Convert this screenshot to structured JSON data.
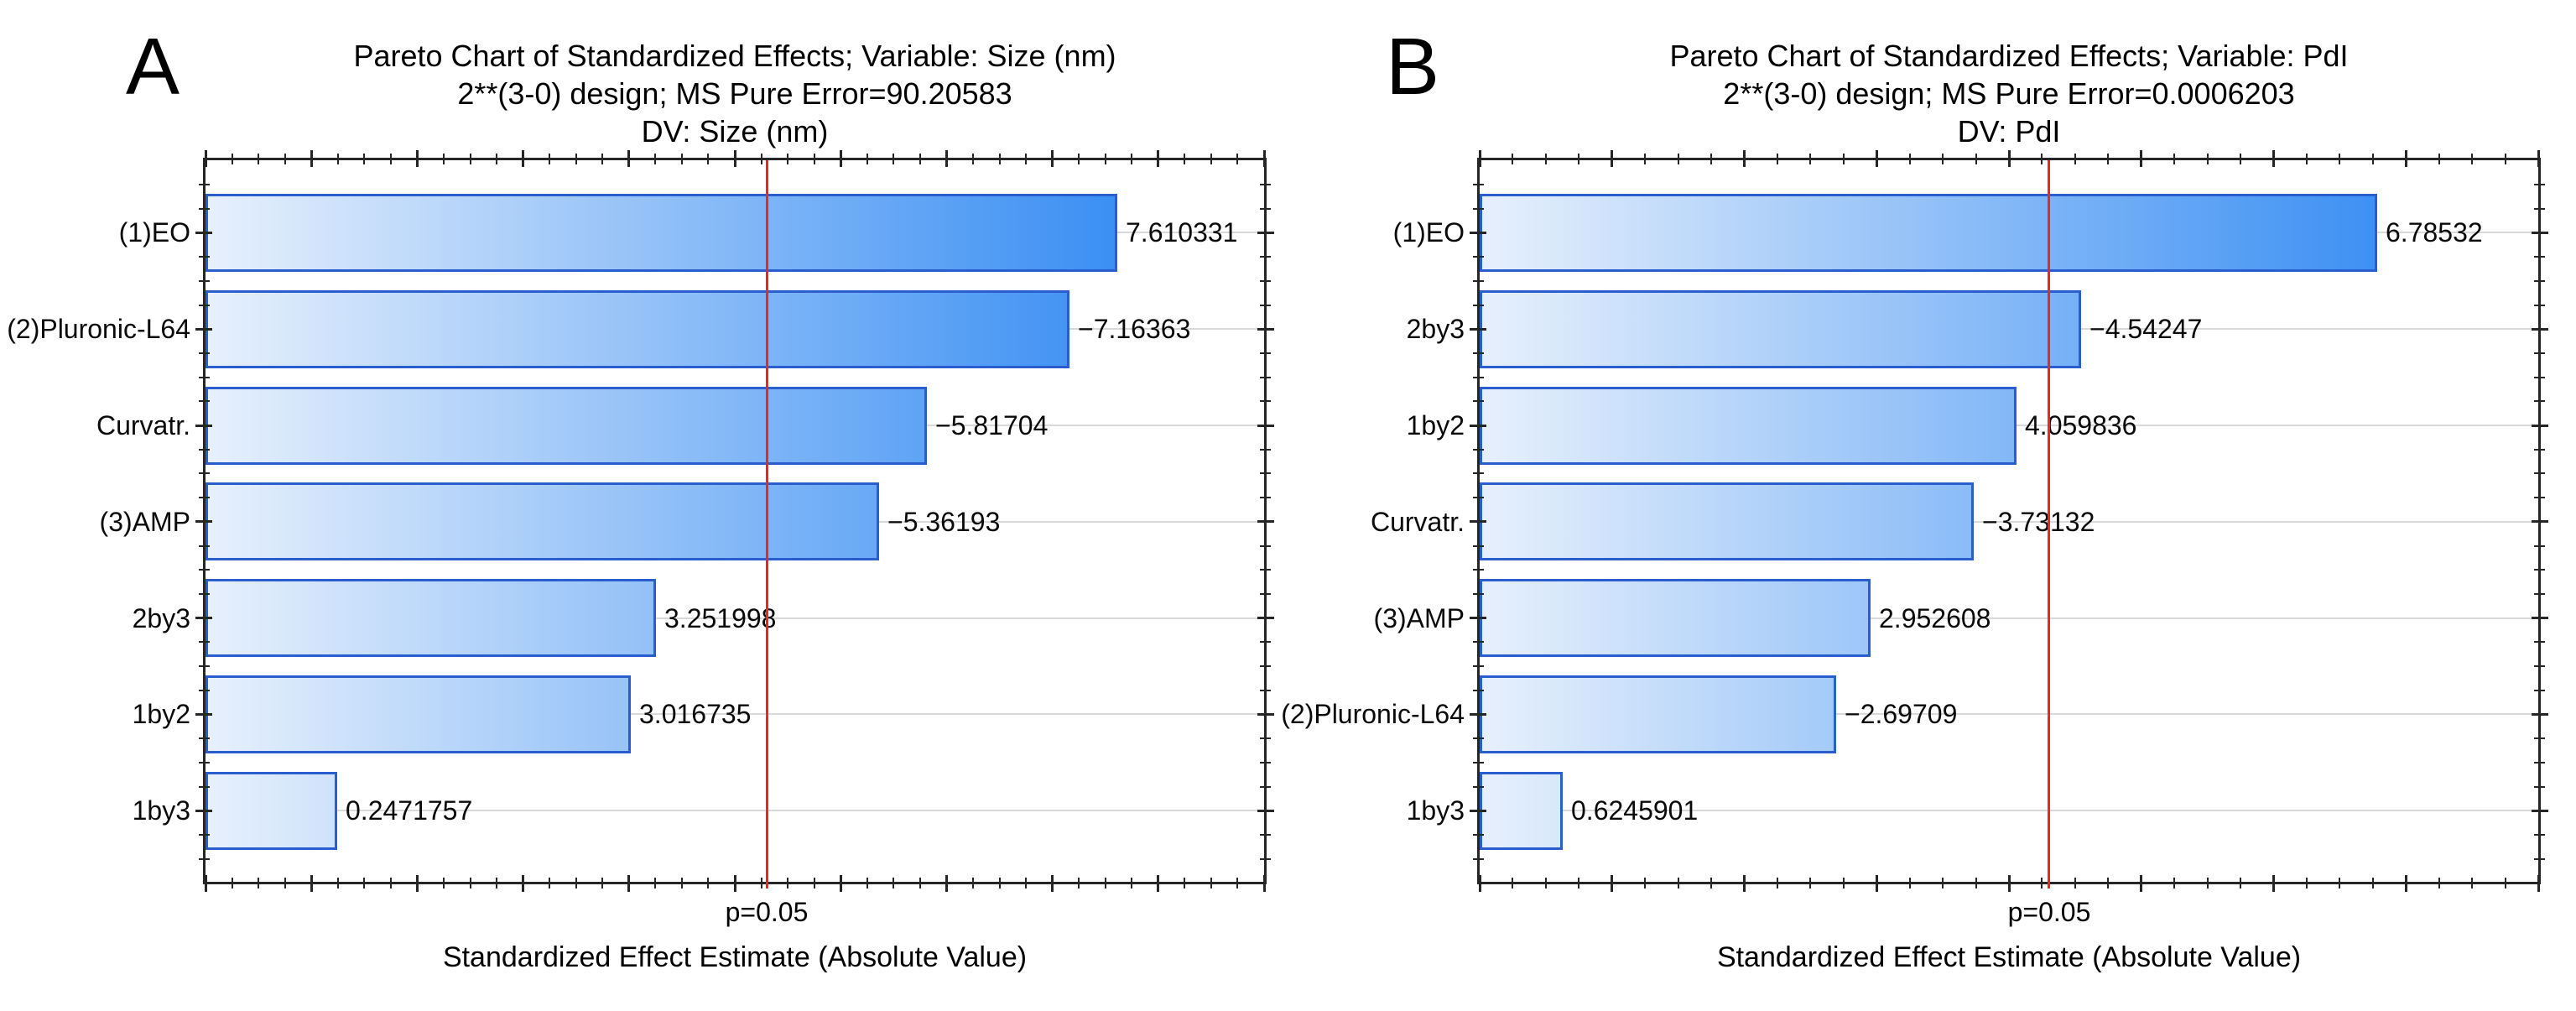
{
  "chart_data": [
    {
      "type": "bar",
      "orientation": "horizontal",
      "panel_label": "A",
      "title": "Pareto Chart of Standardized Effects; Variable: Size (nm)",
      "subtitle": "2**(3-0) design; MS Pure Error=90.20583",
      "subtitle2": "DV: Size (nm)",
      "categories": [
        "(1)EO",
        "(2)Pluronic-L64",
        "Curvatr.",
        "(3)AMP",
        "2by3",
        "1by2",
        "1by3"
      ],
      "values": [
        7.610331,
        -7.16363,
        -5.81704,
        -5.36193,
        3.251998,
        3.016735,
        0.2471757
      ],
      "value_labels": [
        "7.610331",
        "−7.16363",
        "−5.81704",
        "−5.36193",
        "3.251998",
        "3.016735",
        "0.2471757"
      ],
      "xlabel": "Standardized Effect Estimate (Absolute Value)",
      "xlim": [
        -1,
        9
      ],
      "x_major_step": 1,
      "x_minor_step": 0.25,
      "x_tick_labels_shown": false,
      "grid": "horizontal-category-gridlines",
      "reference_line": {
        "value": 4.303,
        "label": "p=0.05"
      },
      "bars_drawn_from_axis_minimum": true
    },
    {
      "type": "bar",
      "orientation": "horizontal",
      "panel_label": "B",
      "title": "Pareto Chart of Standardized Effects; Variable: PdI",
      "subtitle": "2**(3-0) design; MS Pure Error=0.0006203",
      "subtitle2": "DV: PdI",
      "categories": [
        "(1)EO",
        "2by3",
        "1by2",
        "Curvatr.",
        "(3)AMP",
        "(2)Pluronic-L64",
        "1by3"
      ],
      "values": [
        6.78532,
        -4.54247,
        4.059836,
        -3.73132,
        2.952608,
        -2.69709,
        0.6245901
      ],
      "value_labels": [
        "6.78532",
        "−4.54247",
        "4.059836",
        "−3.73132",
        "2.952608",
        "−2.69709",
        "0.6245901"
      ],
      "xlabel": "Standardized Effect Estimate (Absolute Value)",
      "xlim": [
        0,
        8
      ],
      "x_major_step": 1,
      "x_minor_step": 0.25,
      "x_tick_labels_shown": false,
      "grid": "horizontal-category-gridlines",
      "reference_line": {
        "value": 4.303,
        "label": "p=0.05"
      },
      "bars_drawn_from_axis_minimum": true
    }
  ],
  "colors": {
    "background": "#ffffff",
    "bar_gradient_start": "#e7f0fc",
    "bar_gradient_end": "#1e7ff2",
    "bar_border": "#2a5ecf",
    "reference_line": "#e8291d",
    "gridline": "#d9d9d9",
    "axis": "#262626",
    "text": "#000000"
  }
}
